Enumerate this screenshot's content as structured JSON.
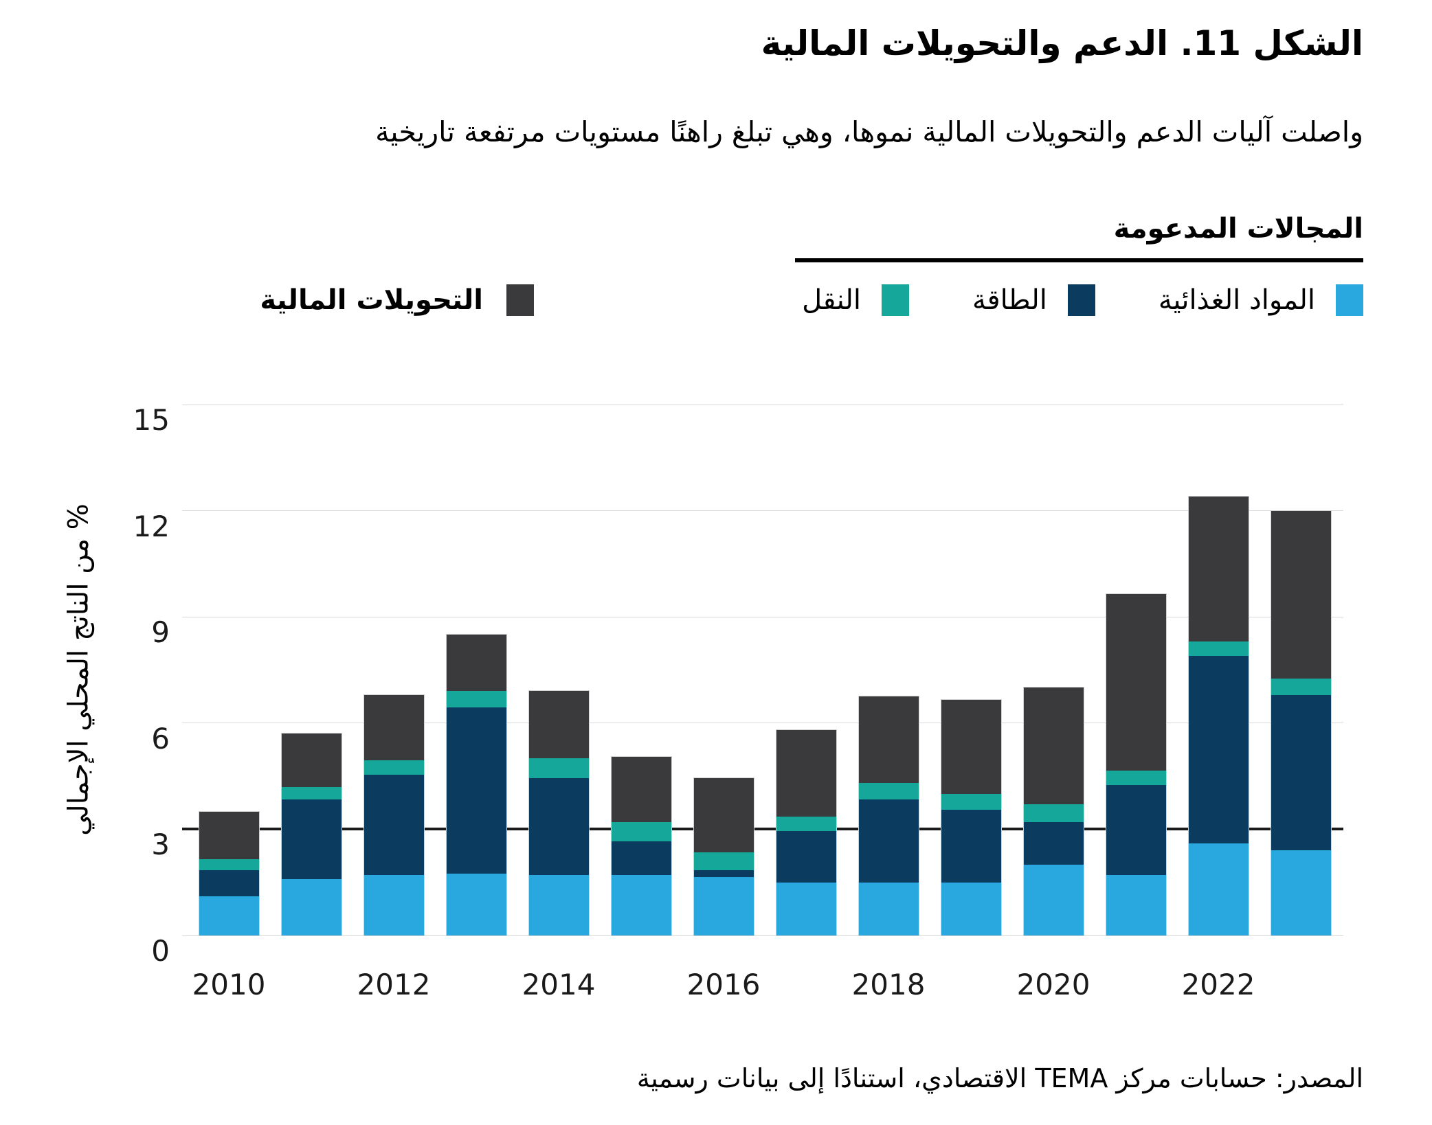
{
  "figure": {
    "title": "الشكل 11. الدعم والتحويلات المالية",
    "subtitle": "واصلت آليات الدعم والتحويلات المالية نموها، وهي تبلغ راهنًا مستويات مرتفعة تاريخية",
    "source": "المصدر: حسابات مركز TEMA الاقتصادي، استنادًا إلى بيانات رسمية"
  },
  "legend": {
    "sectors_header": "المجالات المدعومة",
    "sectors": [
      {
        "label": "المواد الغذائية",
        "color": "#29A8E0"
      },
      {
        "label": "الطاقة",
        "color": "#0B3B5F"
      },
      {
        "label": "النقل",
        "color": "#14A79A"
      }
    ],
    "transfers": {
      "label": "التحويلات المالية",
      "color": "#3A3A3C"
    }
  },
  "chart_data": {
    "type": "bar",
    "stacked": true,
    "title": "الشكل 11. الدعم والتحويلات المالية",
    "xlabel": "",
    "ylabel": "% من الناتج المحلي الإجمالي",
    "ylim": [
      0,
      15
    ],
    "yticks": [
      0,
      3,
      6,
      9,
      12,
      15
    ],
    "highlight_gridline": 3,
    "grid_color": "#D9D9D9",
    "highlight_color": "#1A1A1A",
    "legend_position": "top",
    "categories": [
      2010,
      2011,
      2012,
      2013,
      2014,
      2015,
      2016,
      2017,
      2018,
      2019,
      2020,
      2021,
      2022,
      2023
    ],
    "x_tick_years": [
      2010,
      2012,
      2014,
      2016,
      2018,
      2020,
      2022
    ],
    "series": [
      {
        "name": "المواد الغذائية",
        "color": "#29A8E0",
        "values": [
          1.1,
          1.6,
          1.7,
          1.75,
          1.7,
          1.7,
          1.65,
          1.5,
          1.5,
          1.5,
          2.0,
          1.7,
          2.6,
          2.4
        ]
      },
      {
        "name": "الطاقة",
        "color": "#0B3B5F",
        "values": [
          0.75,
          2.25,
          2.85,
          4.7,
          2.75,
          0.95,
          0.2,
          1.45,
          2.35,
          2.05,
          1.2,
          2.55,
          5.3,
          4.4
        ]
      },
      {
        "name": "النقل",
        "color": "#14A79A",
        "values": [
          0.3,
          0.35,
          0.4,
          0.45,
          0.55,
          0.55,
          0.5,
          0.4,
          0.45,
          0.45,
          0.5,
          0.4,
          0.4,
          0.45
        ]
      },
      {
        "name": "التحويلات المالية",
        "color": "#3A3A3C",
        "values": [
          1.35,
          1.5,
          1.85,
          1.6,
          1.9,
          1.85,
          2.1,
          2.45,
          2.45,
          2.65,
          3.3,
          5.0,
          4.1,
          4.75
        ]
      }
    ]
  }
}
